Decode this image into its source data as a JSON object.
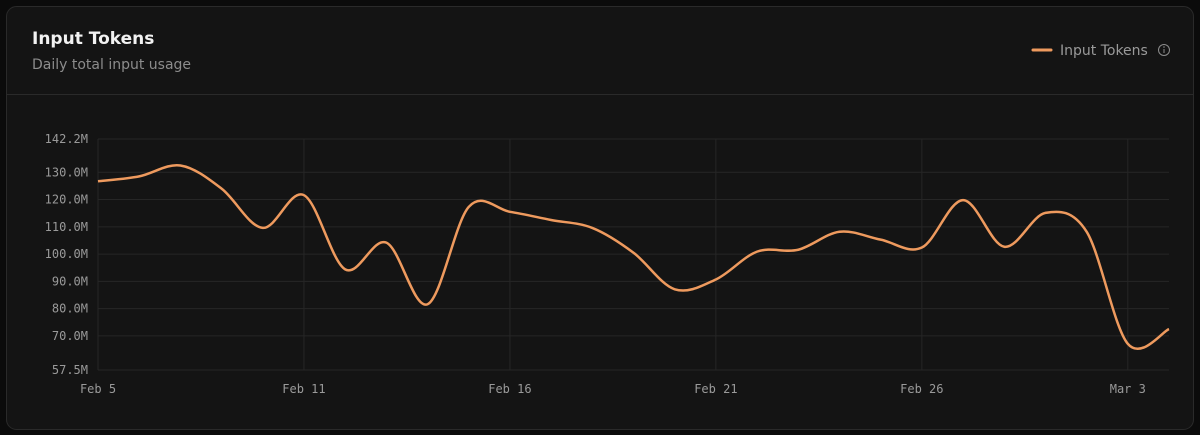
{
  "chart_data": {
    "type": "line",
    "title": "Input Tokens",
    "subtitle": "Daily total input usage",
    "categories": [
      "Feb 5",
      null,
      null,
      null,
      null,
      "Feb 11",
      null,
      null,
      null,
      null,
      "Feb 16",
      null,
      null,
      null,
      null,
      "Feb 21",
      null,
      null,
      null,
      null,
      "Feb 26",
      null,
      null,
      null,
      null,
      "Mar 3",
      null
    ],
    "series": [
      {
        "name": "Input Tokens",
        "color": "#ee9a5e",
        "values": [
          126700000,
          128500000,
          132500000,
          124000000,
          109600000,
          121600000,
          94400000,
          104200000,
          81600000,
          117300000,
          115500000,
          112500000,
          109600000,
          100500000,
          87100000,
          90700000,
          100900000,
          101600000,
          108200000,
          105300000,
          102400000,
          119800000,
          102700000,
          115100000,
          108200000,
          67100000,
          72500000
        ]
      }
    ],
    "ylim": [
      57500000,
      142200000
    ],
    "yticks": [
      {
        "value": 57500000,
        "label": "57.5M"
      },
      {
        "value": 70000000,
        "label": "70.0M"
      },
      {
        "value": 80000000,
        "label": "80.0M"
      },
      {
        "value": 90000000,
        "label": "90.0M"
      },
      {
        "value": 100000000,
        "label": "100.0M"
      },
      {
        "value": 110000000,
        "label": "110.0M"
      },
      {
        "value": 120000000,
        "label": "120.0M"
      },
      {
        "value": 130000000,
        "label": "130.0M"
      },
      {
        "value": 142200000,
        "label": "142.2M"
      }
    ],
    "grid": true,
    "legend": "top-right"
  }
}
